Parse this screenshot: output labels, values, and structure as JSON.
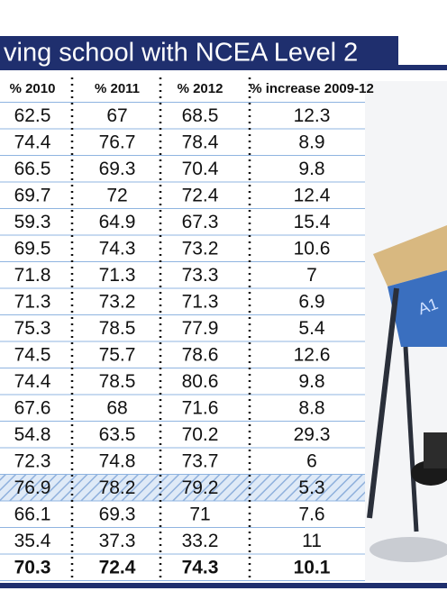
{
  "header": {
    "title": "ving school with NCEA Level 2"
  },
  "table": {
    "columns": [
      "% 2010",
      "% 2011",
      "% 2012",
      "% increase 2009-12"
    ],
    "rows": [
      [
        "62.5",
        "67",
        "68.5",
        "12.3"
      ],
      [
        "74.4",
        "76.7",
        "78.4",
        "8.9"
      ],
      [
        "66.5",
        "69.3",
        "70.4",
        "9.8"
      ],
      [
        "69.7",
        "72",
        "72.4",
        "12.4"
      ],
      [
        "59.3",
        "64.9",
        "67.3",
        "15.4"
      ],
      [
        "69.5",
        "74.3",
        "73.2",
        "10.6"
      ],
      [
        "71.8",
        "71.3",
        "73.3",
        "7"
      ],
      [
        "71.3",
        "73.2",
        "71.3",
        "6.9"
      ],
      [
        "75.3",
        "78.5",
        "77.9",
        "5.4"
      ],
      [
        "74.5",
        "75.7",
        "78.6",
        "12.6"
      ],
      [
        "74.4",
        "78.5",
        "80.6",
        "9.8"
      ],
      [
        "67.6",
        "68",
        "71.6",
        "8.8"
      ],
      [
        "54.8",
        "63.5",
        "70.2",
        "29.3"
      ],
      [
        "72.3",
        "74.8",
        "73.7",
        "6"
      ],
      [
        "76.9",
        "78.2",
        "79.2",
        "5.3"
      ],
      [
        "66.1",
        "69.3",
        "71",
        "7.6"
      ],
      [
        "35.4",
        "37.3",
        "33.2",
        "11"
      ],
      [
        "70.3",
        "72.4",
        "74.3",
        "10.1"
      ]
    ]
  }
}
